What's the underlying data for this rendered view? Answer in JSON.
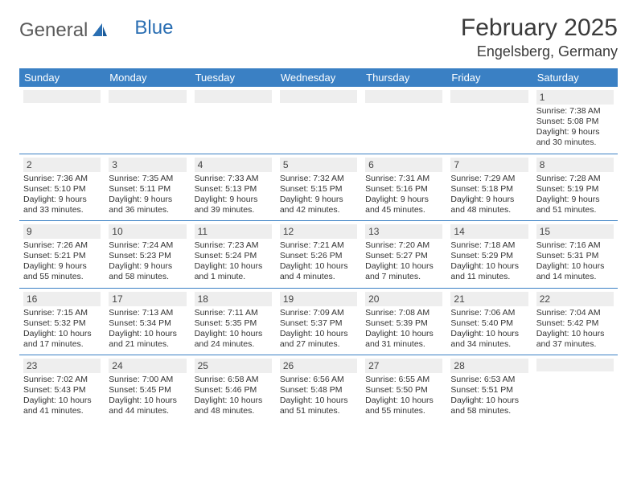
{
  "logo": {
    "text_general": "General",
    "text_blue": "Blue"
  },
  "title": {
    "month_year": "February 2025",
    "location": "Engelsberg, Germany"
  },
  "colors": {
    "header_bg": "#3a80c4",
    "header_text": "#ffffff",
    "date_band_bg": "#eeeeee",
    "cell_border": "#3a80c4",
    "body_text": "#333333",
    "logo_gray": "#5a5a5a",
    "logo_blue": "#2b6fb3"
  },
  "day_headers": [
    "Sunday",
    "Monday",
    "Tuesday",
    "Wednesday",
    "Thursday",
    "Friday",
    "Saturday"
  ],
  "weeks": [
    [
      {
        "date": "",
        "sunrise": "",
        "sunset": "",
        "daylight": ""
      },
      {
        "date": "",
        "sunrise": "",
        "sunset": "",
        "daylight": ""
      },
      {
        "date": "",
        "sunrise": "",
        "sunset": "",
        "daylight": ""
      },
      {
        "date": "",
        "sunrise": "",
        "sunset": "",
        "daylight": ""
      },
      {
        "date": "",
        "sunrise": "",
        "sunset": "",
        "daylight": ""
      },
      {
        "date": "",
        "sunrise": "",
        "sunset": "",
        "daylight": ""
      },
      {
        "date": "1",
        "sunrise": "Sunrise: 7:38 AM",
        "sunset": "Sunset: 5:08 PM",
        "daylight": "Daylight: 9 hours and 30 minutes."
      }
    ],
    [
      {
        "date": "2",
        "sunrise": "Sunrise: 7:36 AM",
        "sunset": "Sunset: 5:10 PM",
        "daylight": "Daylight: 9 hours and 33 minutes."
      },
      {
        "date": "3",
        "sunrise": "Sunrise: 7:35 AM",
        "sunset": "Sunset: 5:11 PM",
        "daylight": "Daylight: 9 hours and 36 minutes."
      },
      {
        "date": "4",
        "sunrise": "Sunrise: 7:33 AM",
        "sunset": "Sunset: 5:13 PM",
        "daylight": "Daylight: 9 hours and 39 minutes."
      },
      {
        "date": "5",
        "sunrise": "Sunrise: 7:32 AM",
        "sunset": "Sunset: 5:15 PM",
        "daylight": "Daylight: 9 hours and 42 minutes."
      },
      {
        "date": "6",
        "sunrise": "Sunrise: 7:31 AM",
        "sunset": "Sunset: 5:16 PM",
        "daylight": "Daylight: 9 hours and 45 minutes."
      },
      {
        "date": "7",
        "sunrise": "Sunrise: 7:29 AM",
        "sunset": "Sunset: 5:18 PM",
        "daylight": "Daylight: 9 hours and 48 minutes."
      },
      {
        "date": "8",
        "sunrise": "Sunrise: 7:28 AM",
        "sunset": "Sunset: 5:19 PM",
        "daylight": "Daylight: 9 hours and 51 minutes."
      }
    ],
    [
      {
        "date": "9",
        "sunrise": "Sunrise: 7:26 AM",
        "sunset": "Sunset: 5:21 PM",
        "daylight": "Daylight: 9 hours and 55 minutes."
      },
      {
        "date": "10",
        "sunrise": "Sunrise: 7:24 AM",
        "sunset": "Sunset: 5:23 PM",
        "daylight": "Daylight: 9 hours and 58 minutes."
      },
      {
        "date": "11",
        "sunrise": "Sunrise: 7:23 AM",
        "sunset": "Sunset: 5:24 PM",
        "daylight": "Daylight: 10 hours and 1 minute."
      },
      {
        "date": "12",
        "sunrise": "Sunrise: 7:21 AM",
        "sunset": "Sunset: 5:26 PM",
        "daylight": "Daylight: 10 hours and 4 minutes."
      },
      {
        "date": "13",
        "sunrise": "Sunrise: 7:20 AM",
        "sunset": "Sunset: 5:27 PM",
        "daylight": "Daylight: 10 hours and 7 minutes."
      },
      {
        "date": "14",
        "sunrise": "Sunrise: 7:18 AM",
        "sunset": "Sunset: 5:29 PM",
        "daylight": "Daylight: 10 hours and 11 minutes."
      },
      {
        "date": "15",
        "sunrise": "Sunrise: 7:16 AM",
        "sunset": "Sunset: 5:31 PM",
        "daylight": "Daylight: 10 hours and 14 minutes."
      }
    ],
    [
      {
        "date": "16",
        "sunrise": "Sunrise: 7:15 AM",
        "sunset": "Sunset: 5:32 PM",
        "daylight": "Daylight: 10 hours and 17 minutes."
      },
      {
        "date": "17",
        "sunrise": "Sunrise: 7:13 AM",
        "sunset": "Sunset: 5:34 PM",
        "daylight": "Daylight: 10 hours and 21 minutes."
      },
      {
        "date": "18",
        "sunrise": "Sunrise: 7:11 AM",
        "sunset": "Sunset: 5:35 PM",
        "daylight": "Daylight: 10 hours and 24 minutes."
      },
      {
        "date": "19",
        "sunrise": "Sunrise: 7:09 AM",
        "sunset": "Sunset: 5:37 PM",
        "daylight": "Daylight: 10 hours and 27 minutes."
      },
      {
        "date": "20",
        "sunrise": "Sunrise: 7:08 AM",
        "sunset": "Sunset: 5:39 PM",
        "daylight": "Daylight: 10 hours and 31 minutes."
      },
      {
        "date": "21",
        "sunrise": "Sunrise: 7:06 AM",
        "sunset": "Sunset: 5:40 PM",
        "daylight": "Daylight: 10 hours and 34 minutes."
      },
      {
        "date": "22",
        "sunrise": "Sunrise: 7:04 AM",
        "sunset": "Sunset: 5:42 PM",
        "daylight": "Daylight: 10 hours and 37 minutes."
      }
    ],
    [
      {
        "date": "23",
        "sunrise": "Sunrise: 7:02 AM",
        "sunset": "Sunset: 5:43 PM",
        "daylight": "Daylight: 10 hours and 41 minutes."
      },
      {
        "date": "24",
        "sunrise": "Sunrise: 7:00 AM",
        "sunset": "Sunset: 5:45 PM",
        "daylight": "Daylight: 10 hours and 44 minutes."
      },
      {
        "date": "25",
        "sunrise": "Sunrise: 6:58 AM",
        "sunset": "Sunset: 5:46 PM",
        "daylight": "Daylight: 10 hours and 48 minutes."
      },
      {
        "date": "26",
        "sunrise": "Sunrise: 6:56 AM",
        "sunset": "Sunset: 5:48 PM",
        "daylight": "Daylight: 10 hours and 51 minutes."
      },
      {
        "date": "27",
        "sunrise": "Sunrise: 6:55 AM",
        "sunset": "Sunset: 5:50 PM",
        "daylight": "Daylight: 10 hours and 55 minutes."
      },
      {
        "date": "28",
        "sunrise": "Sunrise: 6:53 AM",
        "sunset": "Sunset: 5:51 PM",
        "daylight": "Daylight: 10 hours and 58 minutes."
      },
      {
        "date": "",
        "sunrise": "",
        "sunset": "",
        "daylight": ""
      }
    ]
  ]
}
